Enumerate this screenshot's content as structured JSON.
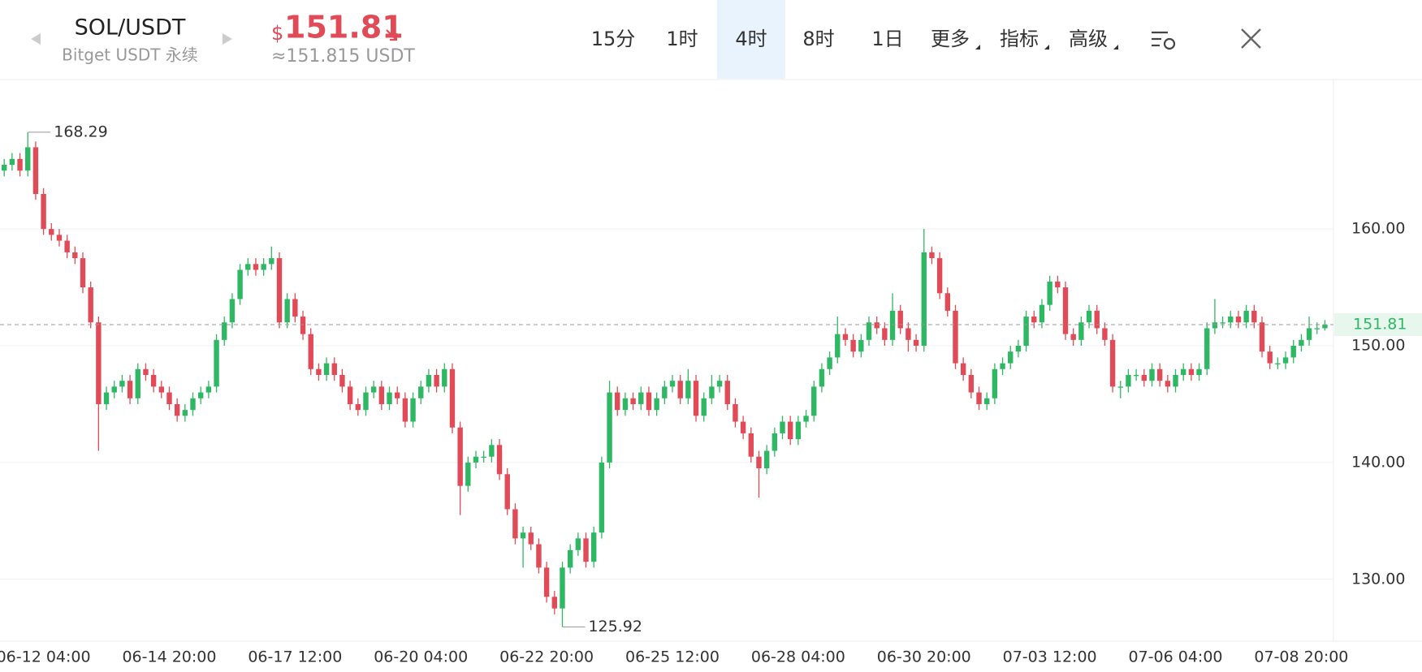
{
  "header": {
    "symbol": "SOL/USDT",
    "exchange": "Bitget USDT 永续",
    "currency_sign": "$",
    "price": "151.81",
    "approx": "≈151.815 USDT",
    "tabs": [
      "15分",
      "1时",
      "4时",
      "8时",
      "1日",
      "更多",
      "指标",
      "高级"
    ],
    "active_tab": 2,
    "dropdown_tabs": [
      5,
      6,
      7
    ]
  },
  "chart_data": {
    "type": "candlestick",
    "up_color": "#2fb864",
    "down_color": "#e04b57",
    "categories": [
      null,
      null,
      null,
      null,
      null,
      "06-12 04:00",
      null,
      null,
      null,
      null,
      null,
      null,
      null,
      null,
      null,
      null,
      null,
      null,
      null,
      null,
      null,
      "06-14 20:00",
      null,
      null,
      null,
      null,
      null,
      null,
      null,
      null,
      null,
      null,
      null,
      null,
      null,
      null,
      null,
      "06-17 12:00",
      null,
      null,
      null,
      null,
      null,
      null,
      null,
      null,
      null,
      null,
      null,
      null,
      null,
      null,
      null,
      "06-20 04:00",
      null,
      null,
      null,
      null,
      null,
      null,
      null,
      null,
      null,
      null,
      null,
      null,
      null,
      null,
      null,
      "06-22 20:00",
      null,
      null,
      null,
      null,
      null,
      null,
      null,
      null,
      null,
      null,
      null,
      null,
      null,
      null,
      null,
      "06-25 12:00",
      null,
      null,
      null,
      null,
      null,
      null,
      null,
      null,
      null,
      null,
      null,
      null,
      null,
      null,
      null,
      "06-28 04:00",
      null,
      null,
      null,
      null,
      null,
      null,
      null,
      null,
      null,
      null,
      null,
      null,
      null,
      null,
      null,
      "06-30 20:00",
      null,
      null,
      null,
      null,
      null,
      null,
      null,
      null,
      null,
      null,
      null,
      null,
      null,
      null,
      null,
      "07-03 12:00",
      null,
      null,
      null,
      null,
      null,
      null,
      null,
      null,
      null,
      null,
      null,
      null,
      null,
      null,
      null,
      "07-06 04:00",
      null,
      null,
      null,
      null,
      null,
      null,
      null,
      null,
      null,
      null,
      null,
      null,
      null,
      null,
      null,
      "07-08 20:00",
      null,
      null,
      null
    ],
    "open": [
      165,
      165.5,
      166,
      165,
      167,
      163,
      160,
      159.5,
      159,
      158,
      157.5,
      155,
      152,
      145,
      146,
      146.5,
      147,
      145.5,
      148,
      147.5,
      146.5,
      146,
      145,
      144,
      144.5,
      145.5,
      146,
      146.5,
      150.5,
      152,
      154,
      156.5,
      157,
      156.5,
      157,
      157.5,
      152,
      154,
      152.5,
      151,
      148,
      147.5,
      148.5,
      147.5,
      146.5,
      145,
      144.5,
      146,
      146.5,
      145,
      146,
      145.5,
      143.5,
      145.5,
      146.5,
      147.5,
      146.5,
      148,
      143,
      138,
      140,
      140.5,
      140.5,
      141.5,
      139,
      136,
      133.5,
      134,
      133,
      131,
      128.5,
      127.5,
      131,
      132.5,
      133.5,
      131.5,
      134,
      140,
      146,
      144.5,
      145.5,
      145,
      146,
      144.5,
      145.5,
      146.5,
      147,
      145.5,
      147,
      144,
      145.5,
      146.5,
      147,
      145,
      143.5,
      142.5,
      140.5,
      139.5,
      141,
      142.5,
      143.5,
      142,
      143.5,
      144,
      146.5,
      148,
      149,
      151,
      150.5,
      149.5,
      150.5,
      152,
      151.5,
      150.5,
      153,
      151.5,
      150.5,
      150,
      158,
      157.5,
      154.5,
      153,
      148.5,
      147.5,
      146,
      145,
      145.5,
      148,
      148.5,
      149.5,
      150,
      152.5,
      152,
      153.5,
      155.5,
      155,
      151,
      150.5,
      152,
      153,
      151.5,
      150.5,
      146.5,
      146.5,
      147.5,
      147.5,
      147,
      148,
      147,
      146.5,
      147.5,
      148,
      147.5,
      148,
      151.5,
      152,
      152,
      152.5,
      152,
      153,
      152,
      149.5,
      148.5,
      148.5,
      149,
      150,
      150.5,
      151.5,
      151.5
    ],
    "high": [
      166,
      166.5,
      166.5,
      168.29,
      167.5,
      163.5,
      160.5,
      160,
      159.5,
      158.5,
      158,
      155.5,
      152.5,
      146.5,
      147,
      147.5,
      147.5,
      148.5,
      148.5,
      148,
      147,
      146.5,
      145.5,
      145,
      146,
      146.5,
      147,
      151,
      152.5,
      154.5,
      157,
      157.5,
      157.5,
      157.5,
      158.5,
      158,
      154.5,
      154.5,
      153,
      151.5,
      148.5,
      149,
      149,
      148,
      147,
      145.5,
      146.5,
      147,
      147,
      146.5,
      146.5,
      146,
      146,
      147,
      148,
      148,
      148.5,
      148.5,
      143.5,
      140.5,
      141,
      141,
      142,
      142,
      139.5,
      136.5,
      134.5,
      134.5,
      133.5,
      131.5,
      129,
      131.5,
      133,
      134,
      134,
      134.5,
      140.5,
      147,
      146.5,
      146,
      146,
      146.5,
      146.5,
      146,
      147,
      147.5,
      147.5,
      148,
      147.5,
      146,
      147.5,
      147.5,
      147.5,
      145.5,
      144,
      143,
      141,
      141.5,
      143,
      144,
      144,
      144,
      144.5,
      147,
      148.5,
      149.5,
      152.5,
      151.5,
      151,
      151,
      152.5,
      152.5,
      152,
      154.5,
      153.5,
      152,
      151,
      160,
      158.5,
      158,
      155,
      153.5,
      149,
      148,
      146.5,
      146,
      148.5,
      149,
      150,
      150.5,
      153,
      153,
      154,
      156,
      156,
      155.5,
      151.5,
      152.5,
      153.5,
      153.5,
      152,
      151,
      147,
      148,
      148,
      148,
      148.5,
      148.5,
      147.5,
      148,
      148.5,
      148.5,
      148.5,
      152,
      154,
      152.5,
      153,
      153,
      153.5,
      153.5,
      152.5,
      150,
      149,
      149.5,
      150.5,
      151,
      152.5,
      152,
      152.2
    ],
    "low": [
      164.5,
      165,
      164.5,
      164.5,
      162.5,
      159.5,
      159,
      158.5,
      157.5,
      157,
      154.5,
      151.5,
      141,
      144.5,
      145.5,
      146,
      145,
      145,
      147,
      146,
      145.5,
      144.5,
      143.5,
      143.5,
      144,
      145,
      145.5,
      146,
      150,
      151.5,
      153.5,
      156,
      156,
      156,
      156.5,
      151.5,
      151.5,
      152,
      150.5,
      147.5,
      147,
      147,
      147,
      146,
      144.5,
      144,
      144,
      145.5,
      144.5,
      144.5,
      145,
      143,
      143,
      145,
      146,
      146,
      146,
      142.5,
      135.5,
      137.5,
      139.5,
      140,
      140,
      138.5,
      135.5,
      133,
      131,
      132.5,
      130.5,
      128,
      127,
      125.92,
      130.5,
      132,
      131,
      131,
      133.5,
      139.5,
      144,
      144,
      144.5,
      144.5,
      144,
      144,
      145,
      146,
      145,
      145,
      143.5,
      143.5,
      145,
      146,
      144.5,
      143,
      142,
      140,
      137,
      139,
      140.5,
      142,
      141.5,
      141.5,
      143,
      143.5,
      146,
      147.5,
      148.5,
      150,
      149,
      149,
      150,
      151,
      150,
      150,
      151,
      149.5,
      149.5,
      149.5,
      157,
      154,
      152.5,
      148,
      147,
      145.5,
      144.5,
      144.5,
      145,
      147.5,
      148,
      149,
      149.5,
      151.5,
      151.5,
      153,
      154.5,
      150.5,
      150,
      150,
      151.5,
      151,
      150,
      146,
      145.5,
      146,
      147,
      146.5,
      146.5,
      146.5,
      146,
      146,
      147,
      147,
      147,
      147.5,
      151,
      151.5,
      151.5,
      151.5,
      151.5,
      151.5,
      149,
      148,
      148,
      148,
      148.5,
      149.5,
      150,
      151,
      151.3
    ],
    "close": [
      165.5,
      166,
      165,
      167,
      163,
      160,
      159.5,
      159,
      158,
      157.5,
      155,
      152,
      145,
      146,
      146.5,
      147,
      145.5,
      148,
      147.5,
      146.5,
      146,
      145,
      144,
      144.5,
      145.5,
      146,
      146.5,
      150.5,
      152,
      154,
      156.5,
      157,
      156.5,
      157,
      157.5,
      152,
      154,
      152.5,
      151,
      148,
      147.5,
      148.5,
      147.5,
      146.5,
      145,
      144.5,
      146,
      146.5,
      145,
      146,
      145.5,
      143.5,
      145.5,
      146.5,
      147.5,
      146.5,
      148,
      143,
      138,
      140,
      140.5,
      140.5,
      141.5,
      139,
      136,
      133.5,
      134,
      133,
      131,
      128.5,
      127.5,
      131,
      132.5,
      133.5,
      131.5,
      134,
      140,
      146,
      144.5,
      145.5,
      145,
      146,
      144.5,
      145.5,
      146.5,
      147,
      145.5,
      147,
      144,
      145.5,
      146.5,
      147,
      145,
      143.5,
      142.5,
      140.5,
      139.5,
      141,
      142.5,
      143.5,
      142,
      143.5,
      144,
      146.5,
      148,
      149,
      151,
      150.5,
      149.5,
      150.5,
      152,
      151.5,
      150.5,
      153,
      151.5,
      150.5,
      150,
      158,
      157.5,
      154.5,
      153,
      148.5,
      147.5,
      146,
      145,
      145.5,
      148,
      148.5,
      149.5,
      150,
      152.5,
      152,
      153.5,
      155.5,
      155,
      151,
      150.5,
      152,
      153,
      151.5,
      150.5,
      146.5,
      146.5,
      147.5,
      147.5,
      147,
      148,
      147,
      146.5,
      147.5,
      148,
      147.5,
      148,
      151.5,
      152,
      152,
      152.5,
      152,
      153,
      152,
      149.5,
      148.5,
      148.5,
      149,
      150,
      150.5,
      151.5,
      151.5,
      151.81
    ],
    "ylim": [
      124.7,
      172.8
    ],
    "yticks": [
      {
        "value": 130,
        "label": "130.00"
      },
      {
        "value": 140,
        "label": "140.00"
      },
      {
        "value": 150,
        "label": "150.00"
      },
      {
        "value": 160,
        "label": "160.00"
      }
    ],
    "grid": true,
    "max_marker": 3,
    "min_marker": 71,
    "last_price_line": true
  }
}
